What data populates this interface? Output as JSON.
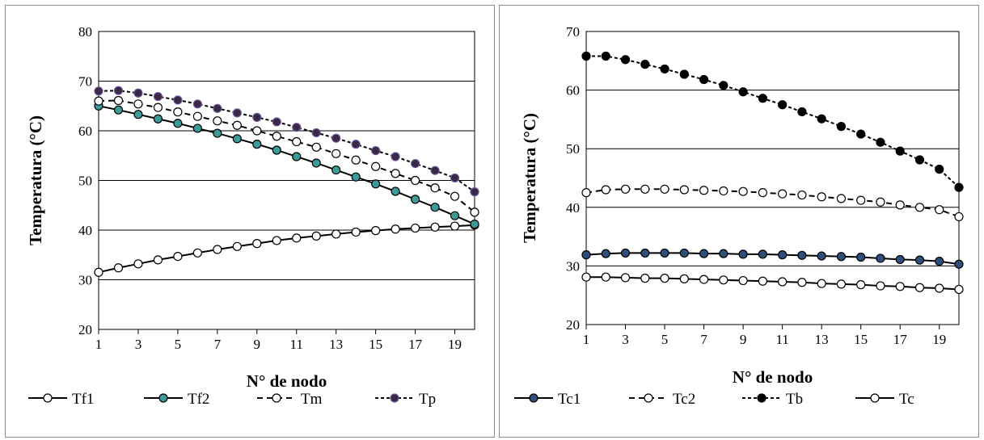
{
  "chart_data": [
    {
      "type": "line",
      "xlabel": "N° de nodo",
      "ylabel": "Temperatura (°C)",
      "ylim": [
        20,
        80
      ],
      "y_ticks": [
        20,
        30,
        40,
        50,
        60,
        70,
        80
      ],
      "x_tick_labels": [
        "1",
        "3",
        "5",
        "7",
        "9",
        "11",
        "13",
        "15",
        "17",
        "19"
      ],
      "x": [
        1,
        2,
        3,
        4,
        5,
        6,
        7,
        8,
        9,
        10,
        11,
        12,
        13,
        14,
        15,
        16,
        17,
        18,
        19,
        20
      ],
      "grid": "horizontal",
      "legend_position": "bottom",
      "series": [
        {
          "name": "Tf1",
          "line": "solid",
          "marker_fill": "#ffffff",
          "marker_stroke": "#000000",
          "values": [
            31.5,
            32.4,
            33.2,
            34.0,
            34.7,
            35.4,
            36.1,
            36.7,
            37.3,
            37.9,
            38.4,
            38.8,
            39.2,
            39.6,
            39.9,
            40.2,
            40.4,
            40.6,
            40.8,
            41.0
          ]
        },
        {
          "name": "Tf2",
          "line": "solid",
          "marker_fill": "#3d9a9a",
          "marker_stroke": "#000000",
          "values": [
            65.0,
            64.2,
            63.3,
            62.4,
            61.5,
            60.5,
            59.5,
            58.4,
            57.3,
            56.1,
            54.8,
            53.5,
            52.1,
            50.7,
            49.3,
            47.8,
            46.2,
            44.6,
            42.9,
            41.2
          ]
        },
        {
          "name": "Tm",
          "line": "dashed",
          "marker_fill": "#ffffff",
          "marker_stroke": "#000000",
          "values": [
            66.0,
            66.1,
            65.4,
            64.7,
            63.8,
            62.9,
            62.0,
            61.1,
            60.0,
            58.9,
            57.8,
            56.7,
            55.4,
            54.1,
            52.8,
            51.4,
            50.0,
            48.5,
            46.8,
            43.6
          ]
        },
        {
          "name": "Tp",
          "line": "dotted",
          "marker_fill": "#3b2845",
          "marker_stroke": "#6a5a9a",
          "values": [
            68.0,
            68.1,
            67.6,
            66.9,
            66.2,
            65.4,
            64.5,
            63.6,
            62.7,
            61.8,
            60.7,
            59.6,
            58.5,
            57.3,
            56.0,
            54.8,
            53.4,
            52.0,
            50.5,
            47.7
          ]
        }
      ]
    },
    {
      "type": "line",
      "xlabel": "N° de nodo",
      "ylabel": "Temperatura (°C)",
      "ylim": [
        20,
        70
      ],
      "y_ticks": [
        20,
        30,
        40,
        50,
        60,
        70
      ],
      "x_tick_labels": [
        "1",
        "3",
        "5",
        "7",
        "9",
        "11",
        "13",
        "15",
        "17",
        "19"
      ],
      "x": [
        1,
        2,
        3,
        4,
        5,
        6,
        7,
        8,
        9,
        10,
        11,
        12,
        13,
        14,
        15,
        16,
        17,
        18,
        19,
        20
      ],
      "grid": "horizontal",
      "legend_position": "bottom",
      "series": [
        {
          "name": "Tc1",
          "line": "solid",
          "marker_fill": "#2e4f7a",
          "marker_stroke": "#000000",
          "values": [
            31.9,
            32.1,
            32.2,
            32.2,
            32.2,
            32.2,
            32.1,
            32.1,
            32.0,
            32.0,
            31.9,
            31.8,
            31.7,
            31.6,
            31.5,
            31.3,
            31.1,
            31.0,
            30.8,
            30.3
          ]
        },
        {
          "name": "Tc2",
          "line": "dashed",
          "marker_fill": "#ffffff",
          "marker_stroke": "#000000",
          "values": [
            42.5,
            43.0,
            43.1,
            43.1,
            43.1,
            43.0,
            42.9,
            42.8,
            42.7,
            42.5,
            42.3,
            42.1,
            41.8,
            41.5,
            41.2,
            40.9,
            40.4,
            40.0,
            39.6,
            38.4
          ]
        },
        {
          "name": "Tb",
          "line": "dotted",
          "marker_fill": "#000000",
          "marker_stroke": "#000000",
          "values": [
            65.8,
            65.8,
            65.2,
            64.4,
            63.6,
            62.7,
            61.8,
            60.8,
            59.7,
            58.6,
            57.5,
            56.3,
            55.1,
            53.8,
            52.5,
            51.1,
            49.6,
            48.1,
            46.5,
            43.4
          ]
        },
        {
          "name": "Tc",
          "line": "solid",
          "marker_fill": "#ffffff",
          "marker_stroke": "#000000",
          "values": [
            28.1,
            28.1,
            28.0,
            27.9,
            27.9,
            27.8,
            27.7,
            27.6,
            27.5,
            27.4,
            27.3,
            27.2,
            27.0,
            26.9,
            26.8,
            26.6,
            26.5,
            26.3,
            26.2,
            26.0
          ]
        }
      ]
    }
  ]
}
